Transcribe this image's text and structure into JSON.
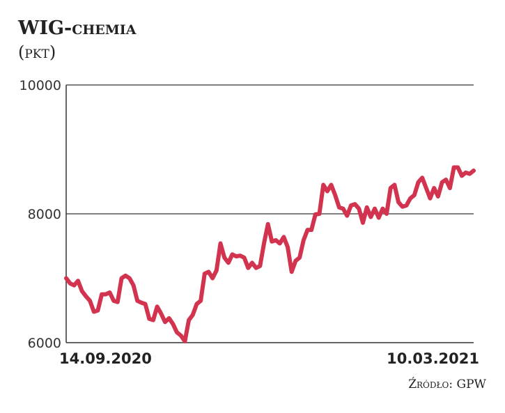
{
  "title_main": "WIG",
  "title_sub": "-chemia",
  "unit": "(pkt)",
  "source": "Źródło: GPW",
  "colors": {
    "line": "#d2344f",
    "axis": "#333333"
  },
  "chart_data": {
    "type": "line",
    "x_start": "14.09.2020",
    "x_end": "10.03.2021",
    "x_tick_labels": [
      "14.09.2020",
      "10.03.2021"
    ],
    "y_tick_labels": [
      "10000",
      "8000",
      "6000"
    ],
    "y_ticks": [
      10000,
      8000,
      6000
    ],
    "ylim": [
      6000,
      10000
    ],
    "grid": "horizontal",
    "values": [
      7000,
      6920,
      6890,
      6960,
      6800,
      6720,
      6650,
      6480,
      6500,
      6750,
      6750,
      6780,
      6650,
      6630,
      7000,
      7040,
      7000,
      6890,
      6650,
      6620,
      6600,
      6370,
      6350,
      6560,
      6450,
      6320,
      6380,
      6290,
      6160,
      6110,
      6020,
      6350,
      6430,
      6600,
      6650,
      7070,
      7100,
      7000,
      7120,
      7540,
      7320,
      7240,
      7370,
      7340,
      7350,
      7320,
      7160,
      7240,
      7160,
      7190,
      7540,
      7840,
      7570,
      7590,
      7540,
      7640,
      7480,
      7100,
      7270,
      7320,
      7590,
      7750,
      7750,
      7990,
      8000,
      8450,
      8350,
      8450,
      8290,
      8100,
      8080,
      7970,
      8130,
      8150,
      8080,
      7860,
      8100,
      7950,
      8080,
      7940,
      8080,
      8000,
      8400,
      8450,
      8180,
      8110,
      8130,
      8240,
      8290,
      8490,
      8560,
      8400,
      8240,
      8400,
      8270,
      8490,
      8530,
      8400,
      8720,
      8720,
      8590,
      8640,
      8620,
      8670
    ]
  }
}
